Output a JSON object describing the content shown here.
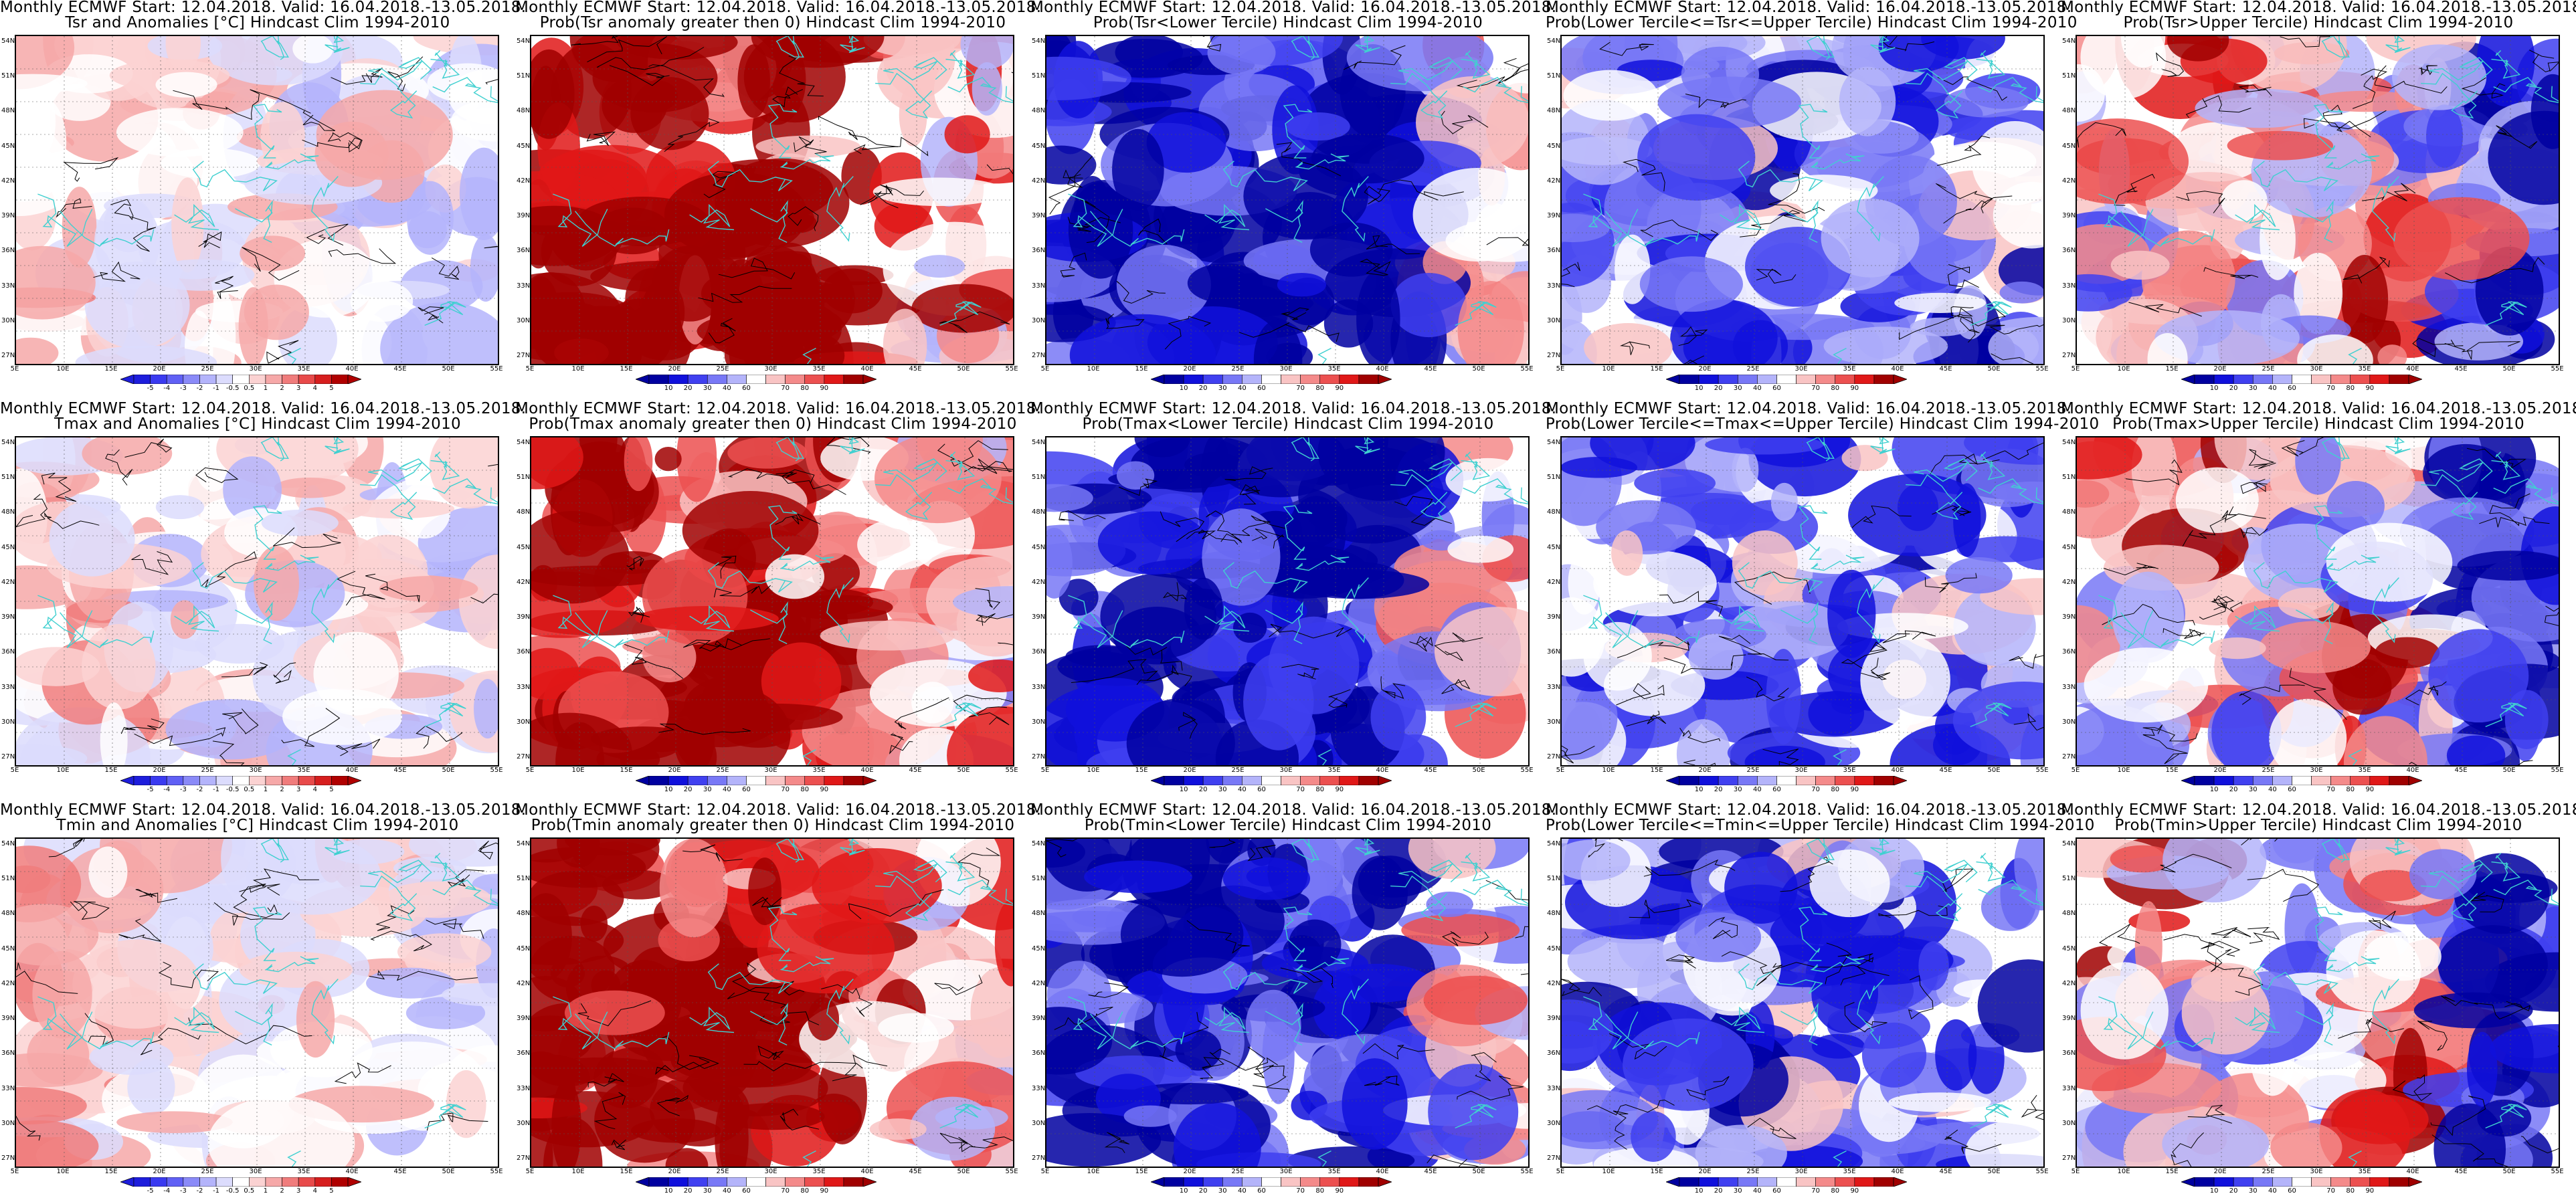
{
  "suptitle": "Monthly ECMWF Start: 12.04.2018. Valid: 16.04.2018.-13.05.2018.",
  "anom_ticks": [
    "-5",
    "-4",
    "-3",
    "-2",
    "-1",
    "-0.5",
    "0.5",
    "1",
    "2",
    "3",
    "4",
    "5"
  ],
  "prob_ticks": [
    "10",
    "20",
    "30",
    "40",
    "60",
    "70",
    "80",
    "90"
  ],
  "lat_labels": [
    "54N",
    "51N",
    "48N",
    "45N",
    "42N",
    "39N",
    "36N",
    "33N",
    "30N",
    "27N"
  ],
  "lon_labels": [
    "5E",
    "10E",
    "15E",
    "20E",
    "25E",
    "30E",
    "35E",
    "40E",
    "45E",
    "50E",
    "55E"
  ],
  "colors": {
    "anom": [
      "#1d1ddc",
      "#3a3af0",
      "#6060f5",
      "#8a8af8",
      "#b4b4fb",
      "#dcdcfd",
      "#ffffff",
      "#fbd2d2",
      "#f6a8a8",
      "#f07c7c",
      "#e84a4a",
      "#d61e1e",
      "#b00000"
    ],
    "prob": [
      "#0000a0",
      "#1010dc",
      "#4040f0",
      "#7878f6",
      "#b4b4fa",
      "#ffffff",
      "#f9c4c4",
      "#f48a8a",
      "#ec5050",
      "#e01818",
      "#a00000"
    ],
    "coast": "#40d0d0",
    "contour": "#000000"
  },
  "rows": [
    {
      "variable": "Tsr",
      "panels": [
        {
          "subtitle": "Tsr and Anomalies [°C] Hindcast Clim 1994-2010",
          "kind": "anom",
          "bias": 0.45
        },
        {
          "subtitle": "Prob(Tsr anomaly greater then 0) Hindcast Clim 1994-2010",
          "kind": "prob",
          "bias": 0.75
        },
        {
          "subtitle": "Prob(Tsr<Lower Tercile) Hindcast Clim 1994-2010",
          "kind": "prob",
          "bias": 0.12
        },
        {
          "subtitle": "Prob(Lower Tercile<=Tsr<=Upper Tercile) Hindcast Clim 1994-2010",
          "kind": "prob",
          "bias": 0.32
        },
        {
          "subtitle": "Prob(Tsr>Upper Tercile) Hindcast Clim 1994-2010",
          "kind": "prob",
          "bias": 0.5
        }
      ]
    },
    {
      "variable": "Tmax",
      "panels": [
        {
          "subtitle": "Tmax and Anomalies [°C] Hindcast Clim 1994-2010",
          "kind": "anom",
          "bias": 0.45
        },
        {
          "subtitle": "Prob(Tmax anomaly greater then 0) Hindcast Clim 1994-2010",
          "kind": "prob",
          "bias": 0.72
        },
        {
          "subtitle": "Prob(Tmax<Lower Tercile) Hindcast Clim 1994-2010",
          "kind": "prob",
          "bias": 0.14
        },
        {
          "subtitle": "Prob(Lower Tercile<=Tmax<=Upper Tercile) Hindcast Clim 1994-2010",
          "kind": "prob",
          "bias": 0.34
        },
        {
          "subtitle": "Prob(Tmax>Upper Tercile) Hindcast Clim 1994-2010",
          "kind": "prob",
          "bias": 0.48
        }
      ]
    },
    {
      "variable": "Tmin",
      "panels": [
        {
          "subtitle": "Tmin and Anomalies [°C] Hindcast Clim 1994-2010",
          "kind": "anom",
          "bias": 0.45
        },
        {
          "subtitle": "Prob(Tmin anomaly greater then 0) Hindcast Clim 1994-2010",
          "kind": "prob",
          "bias": 0.74
        },
        {
          "subtitle": "Prob(Tmin<Lower Tercile) Hindcast Clim 1994-2010",
          "kind": "prob",
          "bias": 0.13
        },
        {
          "subtitle": "Prob(Lower Tercile<=Tmin<=Upper Tercile) Hindcast Clim 1994-2010",
          "kind": "prob",
          "bias": 0.3
        },
        {
          "subtitle": "Prob(Tmin>Upper Tercile) Hindcast Clim 1994-2010",
          "kind": "prob",
          "bias": 0.5
        }
      ]
    }
  ]
}
